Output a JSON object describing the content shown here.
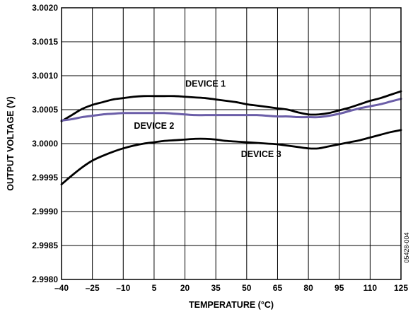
{
  "chart_data": {
    "type": "line",
    "title": "",
    "xlabel": "TEMPERATURE (°C)",
    "ylabel": "OUTPUT VOLTAGE (V)",
    "xlim": [
      -40,
      125
    ],
    "ylim": [
      2.998,
      3.002
    ],
    "x_ticks": [
      -40,
      -25,
      -10,
      5,
      20,
      35,
      50,
      65,
      80,
      95,
      110,
      125
    ],
    "x_tick_labels": [
      "–40",
      "–25",
      "–10",
      "5",
      "20",
      "35",
      "50",
      "65",
      "80",
      "95",
      "110",
      "125"
    ],
    "y_ticks": [
      2.998,
      2.9985,
      2.999,
      2.9995,
      3.0,
      3.0005,
      3.001,
      3.0015,
      3.002
    ],
    "y_tick_labels": [
      "2.9980",
      "2.9985",
      "2.9990",
      "2.9995",
      "3.0000",
      "3.0005",
      "3.0010",
      "3.0015",
      "3.0020"
    ],
    "grid": true,
    "series": [
      {
        "name": "DEVICE 1",
        "color": "#000000",
        "x": [
          -40,
          -35,
          -30,
          -25,
          -20,
          -15,
          -10,
          -5,
          0,
          5,
          10,
          15,
          20,
          25,
          30,
          35,
          40,
          45,
          50,
          55,
          60,
          65,
          70,
          75,
          80,
          85,
          90,
          95,
          100,
          105,
          110,
          115,
          120,
          125
        ],
        "y": [
          3.00033,
          3.00042,
          3.00051,
          3.00057,
          3.00061,
          3.00065,
          3.00067,
          3.00069,
          3.0007,
          3.0007,
          3.0007,
          3.0007,
          3.00069,
          3.00068,
          3.00067,
          3.00065,
          3.00063,
          3.00061,
          3.00058,
          3.00056,
          3.00054,
          3.00052,
          3.0005,
          3.00046,
          3.00043,
          3.00043,
          3.00045,
          3.00049,
          3.00053,
          3.00058,
          3.00063,
          3.00067,
          3.00072,
          3.00077
        ]
      },
      {
        "name": "DEVICE 2",
        "color": "#6b5ea8",
        "x": [
          -40,
          -35,
          -30,
          -25,
          -20,
          -15,
          -10,
          -5,
          0,
          5,
          10,
          15,
          20,
          25,
          30,
          35,
          40,
          45,
          50,
          55,
          60,
          65,
          70,
          75,
          80,
          85,
          90,
          95,
          100,
          105,
          110,
          115,
          120,
          125
        ],
        "y": [
          3.00034,
          3.00036,
          3.00039,
          3.00041,
          3.00043,
          3.00044,
          3.00045,
          3.00045,
          3.00045,
          3.00045,
          3.00045,
          3.00044,
          3.00043,
          3.00042,
          3.00042,
          3.00042,
          3.00042,
          3.00042,
          3.00042,
          3.00042,
          3.00041,
          3.0004,
          3.0004,
          3.00039,
          3.00039,
          3.00039,
          3.00041,
          3.00044,
          3.00048,
          3.00052,
          3.00055,
          3.00058,
          3.00062,
          3.00066
        ]
      },
      {
        "name": "DEVICE 3",
        "color": "#000000",
        "x": [
          -40,
          -35,
          -30,
          -25,
          -20,
          -15,
          -10,
          -5,
          0,
          5,
          10,
          15,
          20,
          25,
          30,
          35,
          40,
          45,
          50,
          55,
          60,
          65,
          70,
          75,
          80,
          85,
          90,
          95,
          100,
          105,
          110,
          115,
          120,
          125
        ],
        "y": [
          2.9994,
          2.99953,
          2.99965,
          2.99975,
          2.99982,
          2.99988,
          2.99993,
          2.99997,
          3.0,
          3.00002,
          3.00004,
          3.00005,
          3.00006,
          3.00007,
          3.00007,
          3.00006,
          3.00004,
          3.00003,
          3.00002,
          3.00001,
          3.0,
          2.99999,
          2.99997,
          2.99995,
          2.99993,
          2.99993,
          2.99996,
          2.99999,
          3.00002,
          3.00005,
          3.00009,
          3.00013,
          3.00017,
          3.0002
        ]
      }
    ],
    "annotations": [
      {
        "text": "DEVICE 1",
        "x": 30,
        "y": 3.00084
      },
      {
        "text": "DEVICE 2",
        "x": 5,
        "y": 3.00022
      },
      {
        "text": "DEVICE 3",
        "x": 57,
        "y": 2.9998
      }
    ],
    "figure_id": "05428-004"
  }
}
